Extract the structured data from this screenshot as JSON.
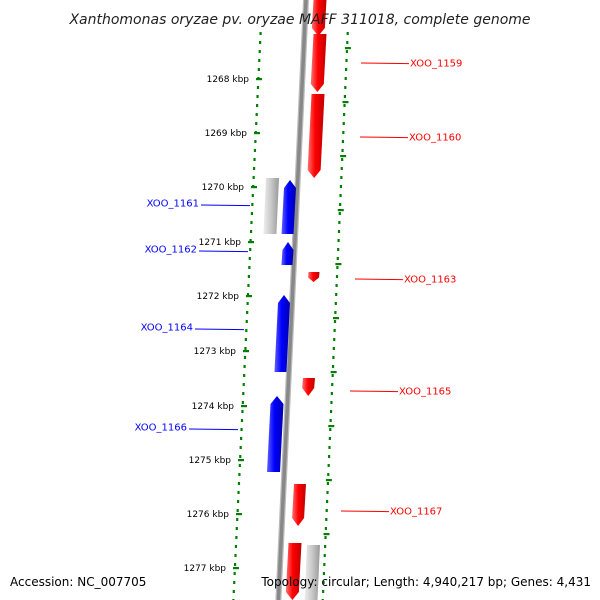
{
  "title": "Xanthomonas oryzae pv. oryzae MAFF 311018, complete genome",
  "footer": {
    "accession": "Accession: NC_007705",
    "summary": "Topology: circular; Length: 4,940,217 bp; Genes: 4,431"
  },
  "colors": {
    "forward_strand": "#ff0000",
    "reverse_strand": "#0000ff",
    "pseudo": "#c8c8c8",
    "backbone": "#888888",
    "dotted_guides": "#008000"
  },
  "ticks": [
    "1268 kbp",
    "1269 kbp",
    "1270 kbp",
    "1271 kbp",
    "1272 kbp",
    "1273 kbp",
    "1274 kbp",
    "1275 kbp",
    "1276 kbp",
    "1277 kbp"
  ],
  "genes": [
    {
      "id": "XOO_1159",
      "strand": "forward"
    },
    {
      "id": "XOO_1160",
      "strand": "forward"
    },
    {
      "id": "XOO_1161",
      "strand": "reverse"
    },
    {
      "id": "XOO_1162",
      "strand": "reverse"
    },
    {
      "id": "XOO_1163",
      "strand": "forward"
    },
    {
      "id": "XOO_1164",
      "strand": "reverse"
    },
    {
      "id": "XOO_1165",
      "strand": "forward"
    },
    {
      "id": "XOO_1166",
      "strand": "reverse"
    },
    {
      "id": "XOO_1167",
      "strand": "forward"
    }
  ]
}
